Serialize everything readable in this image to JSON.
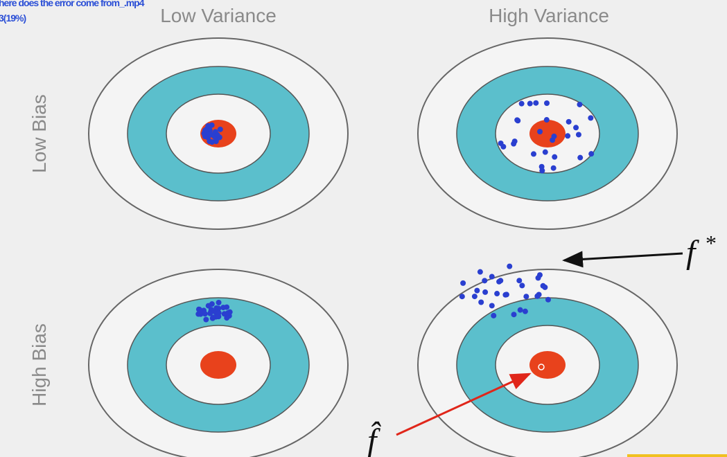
{
  "overlay": {
    "file": "here does the error come from_.mp4",
    "progress": "3(19%)"
  },
  "columns": [
    "Low Variance",
    "High Variance"
  ],
  "rows": [
    "Low Bias",
    "High Bias"
  ],
  "annotations": {
    "f_star": "f",
    "f_star_sup": "*",
    "f_hat": "f̂"
  }
}
